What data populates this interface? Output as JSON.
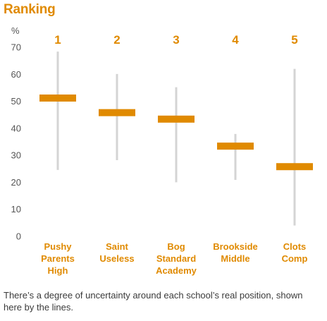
{
  "chart_data": {
    "type": "range",
    "title": "Ranking",
    "ylabel": "%",
    "ylim": [
      0,
      70
    ],
    "yticks": [
      0,
      10,
      20,
      30,
      40,
      50,
      60,
      70
    ],
    "grid": false,
    "categories": [
      "Pushy Parents High",
      "Saint Useless",
      "Bog Standard Academy",
      "Brookside Middle",
      "Clots Comp"
    ],
    "category_label_lines": [
      [
        "Pushy",
        "Parents",
        "High"
      ],
      [
        "Saint",
        "Useless"
      ],
      [
        "Bog",
        "Standard",
        "Academy"
      ],
      [
        "Brookside",
        "Middle"
      ],
      [
        "Clots",
        "Comp"
      ]
    ],
    "ranks": [
      "1",
      "2",
      "3",
      "4",
      "5"
    ],
    "values": [
      51.2,
      45.8,
      43.4,
      33.4,
      25.8
    ],
    "low": [
      24.6,
      28.2,
      20.0,
      20.9,
      4.0
    ],
    "high": [
      68.4,
      60.1,
      55.2,
      37.9,
      62.0
    ],
    "colors": {
      "accent": "#e08a00",
      "range_line": "#d4d4d4",
      "axis_text": "#555555"
    }
  },
  "footnote": "There’s a degree of uncertainty around each school’s real position, shown here by the lines."
}
